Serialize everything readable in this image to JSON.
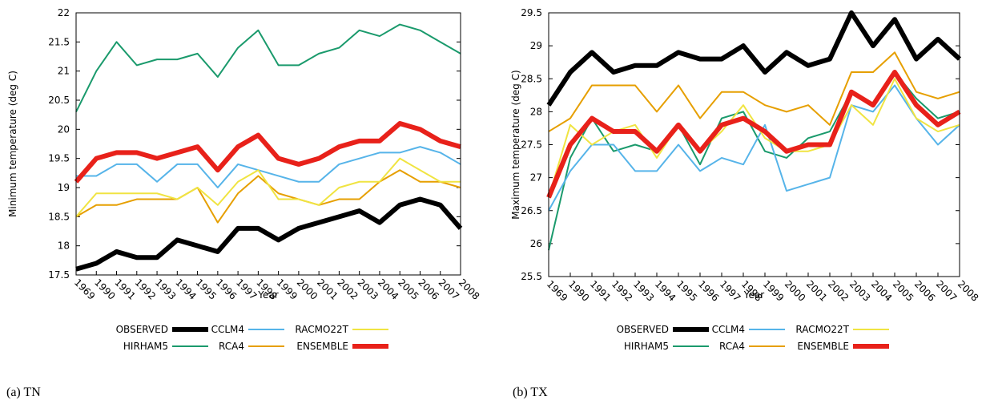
{
  "chart_data": [
    {
      "type": "line",
      "caption": "(a)  TN",
      "y_label": "Minimum temperature (deg C)",
      "x_label": "Year",
      "categories": [
        "1969",
        "1990",
        "1991",
        "1992",
        "1993",
        "1994",
        "1995",
        "1996",
        "1997",
        "1998",
        "1999",
        "2000",
        "2001",
        "2002",
        "2003",
        "2004",
        "2005",
        "2006",
        "2007",
        "2008"
      ],
      "ylim": [
        17.5,
        22
      ],
      "yticks": [
        17.5,
        18,
        18.5,
        19,
        19.5,
        20,
        20.5,
        21,
        21.5,
        22
      ],
      "series": [
        {
          "name": "OBSERVED",
          "color": "#000000",
          "values": [
            17.6,
            17.7,
            17.9,
            17.8,
            17.8,
            18.1,
            18.0,
            17.9,
            18.3,
            18.3,
            18.1,
            18.3,
            18.4,
            18.5,
            18.6,
            18.4,
            18.7,
            18.8,
            18.7,
            18.3
          ]
        },
        {
          "name": "HIRHAM5",
          "color": "#1a9a6c",
          "values": [
            20.3,
            21.0,
            21.5,
            21.1,
            21.2,
            21.2,
            21.3,
            20.9,
            21.4,
            21.7,
            21.1,
            21.1,
            21.3,
            21.4,
            21.7,
            21.6,
            21.8,
            21.7,
            21.5,
            21.3
          ]
        },
        {
          "name": "CCLM4",
          "color": "#56b4e9",
          "values": [
            19.2,
            19.2,
            19.4,
            19.4,
            19.1,
            19.4,
            19.4,
            19.0,
            19.4,
            19.3,
            19.2,
            19.1,
            19.1,
            19.4,
            19.5,
            19.6,
            19.6,
            19.7,
            19.6,
            19.4
          ]
        },
        {
          "name": "RCA4",
          "color": "#e69f00",
          "values": [
            18.5,
            18.7,
            18.7,
            18.8,
            18.8,
            18.8,
            19.0,
            18.4,
            18.9,
            19.2,
            18.9,
            18.8,
            18.7,
            18.8,
            18.8,
            19.1,
            19.3,
            19.1,
            19.1,
            19.0
          ]
        },
        {
          "name": "RACMO22T",
          "color": "#f0e442",
          "values": [
            18.5,
            18.9,
            18.9,
            18.9,
            18.9,
            18.8,
            19.0,
            18.7,
            19.1,
            19.3,
            18.8,
            18.8,
            18.7,
            19.0,
            19.1,
            19.1,
            19.5,
            19.3,
            19.1,
            19.1
          ]
        },
        {
          "name": "ENSEMBLE",
          "color": "#e8211a",
          "values": [
            19.1,
            19.5,
            19.6,
            19.6,
            19.5,
            19.6,
            19.7,
            19.3,
            19.7,
            19.9,
            19.5,
            19.4,
            19.5,
            19.7,
            19.8,
            19.8,
            20.1,
            20.0,
            19.8,
            19.7
          ]
        }
      ]
    },
    {
      "type": "line",
      "caption": "(b)  TX",
      "y_label": "Maximum temperature (deg C)",
      "x_label": "Year",
      "categories": [
        "1969",
        "1990",
        "1991",
        "1992",
        "1993",
        "1994",
        "1995",
        "1996",
        "1997",
        "1998",
        "1999",
        "2000",
        "2001",
        "2002",
        "2003",
        "2004",
        "2005",
        "2006",
        "2007",
        "2008"
      ],
      "ylim": [
        25.5,
        29.5
      ],
      "yticks": [
        25.5,
        26,
        26.5,
        27,
        27.5,
        28,
        28.5,
        29,
        29.5
      ],
      "series": [
        {
          "name": "OBSERVED",
          "color": "#000000",
          "values": [
            28.1,
            28.6,
            28.9,
            28.6,
            28.7,
            28.7,
            28.9,
            28.8,
            28.8,
            29.0,
            28.6,
            28.9,
            28.7,
            28.8,
            29.5,
            29.0,
            29.4,
            28.8,
            29.1,
            28.8
          ]
        },
        {
          "name": "HIRHAM5",
          "color": "#1a9a6c",
          "values": [
            25.9,
            27.3,
            27.9,
            27.4,
            27.5,
            27.4,
            27.8,
            27.2,
            27.9,
            28.0,
            27.4,
            27.3,
            27.6,
            27.7,
            28.3,
            28.1,
            28.6,
            28.2,
            27.9,
            28.0
          ]
        },
        {
          "name": "CCLM4",
          "color": "#56b4e9",
          "values": [
            26.5,
            27.1,
            27.5,
            27.5,
            27.1,
            27.1,
            27.5,
            27.1,
            27.3,
            27.2,
            27.8,
            26.8,
            26.9,
            27.0,
            28.1,
            28.0,
            28.4,
            27.9,
            27.5,
            27.8
          ]
        },
        {
          "name": "RCA4",
          "color": "#e69f00",
          "values": [
            27.7,
            27.9,
            28.4,
            28.4,
            28.4,
            28.0,
            28.4,
            27.9,
            28.3,
            28.3,
            28.1,
            28.0,
            28.1,
            27.8,
            28.6,
            28.6,
            28.9,
            28.3,
            28.2,
            28.3
          ]
        },
        {
          "name": "RACMO22T",
          "color": "#f0e442",
          "values": [
            26.7,
            27.8,
            27.5,
            27.7,
            27.8,
            27.3,
            27.8,
            27.4,
            27.7,
            28.1,
            27.6,
            27.4,
            27.4,
            27.5,
            28.1,
            27.8,
            28.5,
            27.9,
            27.7,
            27.8
          ]
        },
        {
          "name": "ENSEMBLE",
          "color": "#e8211a",
          "values": [
            26.7,
            27.5,
            27.9,
            27.7,
            27.7,
            27.4,
            27.8,
            27.4,
            27.8,
            27.9,
            27.7,
            27.4,
            27.5,
            27.5,
            28.3,
            28.1,
            28.6,
            28.1,
            27.8,
            28.0
          ]
        }
      ]
    }
  ]
}
